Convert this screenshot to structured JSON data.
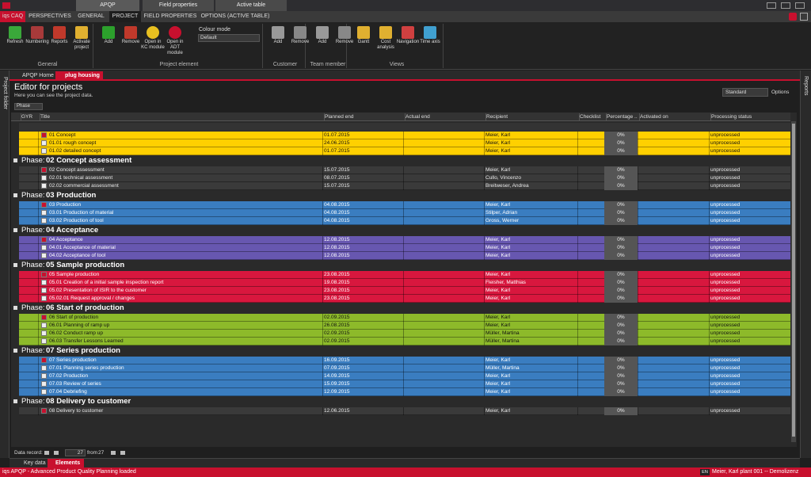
{
  "window": {
    "tabs": [
      "APQP",
      "Field properties",
      "Active table"
    ]
  },
  "ribbon_tabs": [
    "iqs CAQ",
    "PERSPECTIVES",
    "GENERAL",
    "PROJECT",
    "FIELD PROPERTIES",
    "OPTIONS (ACTIVE TABLE)"
  ],
  "ribbon": {
    "groups": [
      {
        "label": "General",
        "buttons": [
          "Refresh",
          "Numbering",
          "Reports",
          "Activate project"
        ]
      },
      {
        "label": "Project element",
        "buttons": [
          "Add",
          "Remove",
          "Open in KC module",
          "Open in ADT module"
        ]
      },
      {
        "label": "Customer",
        "buttons": [
          "Add",
          "Remove"
        ]
      },
      {
        "label": "Team member",
        "buttons": [
          "Add",
          "Remove"
        ]
      },
      {
        "label": "Views",
        "buttons": [
          "Gantt",
          "Cost analysis",
          "Navigation",
          "Time axis"
        ]
      }
    ],
    "colour_mode": {
      "label": "Colour mode",
      "value": "Default"
    }
  },
  "doc_tabs": [
    "APQP Home",
    "plug housing"
  ],
  "side": {
    "left": "Project folder",
    "right": "Reports"
  },
  "editor": {
    "title": "Editor for projects",
    "subtitle": "Here you can see the project data.",
    "view": "Standard",
    "options": "Options",
    "group_by": "Phase"
  },
  "table": {
    "columns": [
      "GYR",
      "Title",
      "Planned end",
      "Actual end",
      "Recipient",
      "Checklist",
      "Percentage ...",
      "Activated on",
      "Processing status"
    ],
    "phase_prefix": "Phase:",
    "phases": [
      {
        "color": "#ffd000",
        "text_color": "#111111",
        "rows": [
          {
            "title": "01 Concept",
            "planned_end": "01.07.2015",
            "recipient": "Meier, Karl",
            "percentage": "0%",
            "status": "unprocessed"
          },
          {
            "title": "01.01  rough concept",
            "planned_end": "24.06.2015",
            "recipient": "Meier, Karl",
            "percentage": "0%",
            "status": "unprocessed"
          },
          {
            "title": "01.02  detailed concept",
            "planned_end": "01.07.2015",
            "recipient": "Meier, Karl",
            "percentage": "0%",
            "status": "unprocessed"
          }
        ]
      },
      {
        "name": "02  Concept assessment",
        "color": "#3a3a3a",
        "text_color": "#e8e8e8",
        "rows": [
          {
            "title": "02  Concept assessment",
            "planned_end": "15.07.2015",
            "recipient": "Meier, Karl",
            "percentage": "0%",
            "status": "unprocessed"
          },
          {
            "title": "02.01  technical assessment",
            "planned_end": "08.07.2015",
            "recipient": "Cullo, Vincenzo",
            "percentage": "0%",
            "status": "unprocessed"
          },
          {
            "title": "02.02  commercial assessment",
            "planned_end": "15.07.2015",
            "recipient": "Breitweser, Andrea",
            "percentage": "0%",
            "status": "unprocessed"
          }
        ]
      },
      {
        "name": "03  Production",
        "color": "#3a7dc0",
        "text_color": "#ffffff",
        "rows": [
          {
            "title": "03  Production",
            "planned_end": "04.08.2015",
            "recipient": "Meier, Karl",
            "percentage": "0%",
            "status": "unprocessed"
          },
          {
            "title": "03.01  Production of material",
            "planned_end": "04.08.2015",
            "recipient": "Stilper, Adrian",
            "percentage": "0%",
            "status": "unprocessed"
          },
          {
            "title": "03.02  Production of tool",
            "planned_end": "04.08.2015",
            "recipient": "Gross, Werner",
            "percentage": "0%",
            "status": "unprocessed"
          }
        ]
      },
      {
        "name": "04  Acceptance",
        "color": "#6757b0",
        "text_color": "#ffffff",
        "rows": [
          {
            "title": "04  Acceptance",
            "planned_end": "12.08.2015",
            "recipient": "Meier, Karl",
            "percentage": "0%",
            "status": "unprocessed"
          },
          {
            "title": "04.01  Acceptance of material",
            "planned_end": "12.08.2015",
            "recipient": "Meier, Karl",
            "percentage": "0%",
            "status": "unprocessed"
          },
          {
            "title": "04.02  Acceptance of tool",
            "planned_end": "12.08.2015",
            "recipient": "Meier, Karl",
            "percentage": "0%",
            "status": "unprocessed"
          }
        ]
      },
      {
        "name": "05   Sample production",
        "color": "#d8173e",
        "text_color": "#ffffff",
        "rows": [
          {
            "title": "05  Sample production",
            "planned_end": "23.08.2015",
            "recipient": "Meier, Karl",
            "percentage": "0%",
            "status": "unprocessed"
          },
          {
            "title": "05.01  Creation of a initial sample inspection report",
            "planned_end": "19.08.2015",
            "recipient": "Fleisher, Matthias",
            "percentage": "0%",
            "status": "unprocessed"
          },
          {
            "title": "05.02  Presentation of ISIR to the customer",
            "planned_end": "23.08.2015",
            "recipient": "Meier, Karl",
            "percentage": "0%",
            "status": "unprocessed"
          },
          {
            "title": "05.02.01  Request approval / changes",
            "planned_end": "23.08.2015",
            "recipient": "Meier, Karl",
            "percentage": "0%",
            "status": "unprocessed"
          }
        ]
      },
      {
        "name": "06  Start of  production",
        "color": "#8dba2a",
        "text_color": "#111111",
        "rows": [
          {
            "title": "06  Start of  production",
            "planned_end": "02.09.2015",
            "recipient": "Meier, Karl",
            "percentage": "0%",
            "status": "unprocessed"
          },
          {
            "title": "06.01  Planning of ramp up",
            "planned_end": "26.08.2015",
            "recipient": "Meier, Karl",
            "percentage": "0%",
            "status": "unprocessed"
          },
          {
            "title": "06.02  Conduct ramp up",
            "planned_end": "02.09.2015",
            "recipient": "Müller, Martina",
            "percentage": "0%",
            "status": "unprocessed"
          },
          {
            "title": "06.03  Transfer Lessons Learned",
            "planned_end": "02.09.2015",
            "recipient": "Müller, Martina",
            "percentage": "0%",
            "status": "unprocessed"
          }
        ]
      },
      {
        "name": "07  Series production",
        "color": "#3a7dc0",
        "text_color": "#ffffff",
        "rows": [
          {
            "title": "07  Series production",
            "planned_end": "16.09.2015",
            "recipient": "Meier, Karl",
            "percentage": "0%",
            "status": "unprocessed"
          },
          {
            "title": "07.01  Planning series production",
            "planned_end": "07.09.2015",
            "recipient": "Müller, Martina",
            "percentage": "0%",
            "status": "unprocessed"
          },
          {
            "title": "07.02  Production",
            "planned_end": "14.09.2015",
            "recipient": "Meier, Karl",
            "percentage": "0%",
            "status": "unprocessed"
          },
          {
            "title": "07.03  Review of series",
            "planned_end": "15.09.2015",
            "recipient": "Meier, Karl",
            "percentage": "0%",
            "status": "unprocessed"
          },
          {
            "title": "07.04  Debriefing",
            "planned_end": "12.09.2015",
            "recipient": "Meier, Karl",
            "percentage": "0%",
            "status": "unprocessed"
          }
        ]
      },
      {
        "name": "08  Delivery to customer",
        "color": "#3a3a3a",
        "text_color": "#e8e8e8",
        "rows": [
          {
            "title": "08  Delivery to customer",
            "planned_end": "12.06.2015",
            "recipient": "Meier, Karl",
            "percentage": "0%",
            "status": "unprocessed"
          }
        ]
      }
    ]
  },
  "footer": {
    "record_label": "Data record:",
    "record": "27",
    "from": "from",
    "total": "27"
  },
  "bottom_tabs": [
    "Key data",
    "Elements"
  ],
  "status": {
    "left": "iqs APQP  -  Advanced Product Quality Planning loaded",
    "lang": "EN",
    "user": "Meier, Karl   plant 001   --   Demolizenz"
  }
}
